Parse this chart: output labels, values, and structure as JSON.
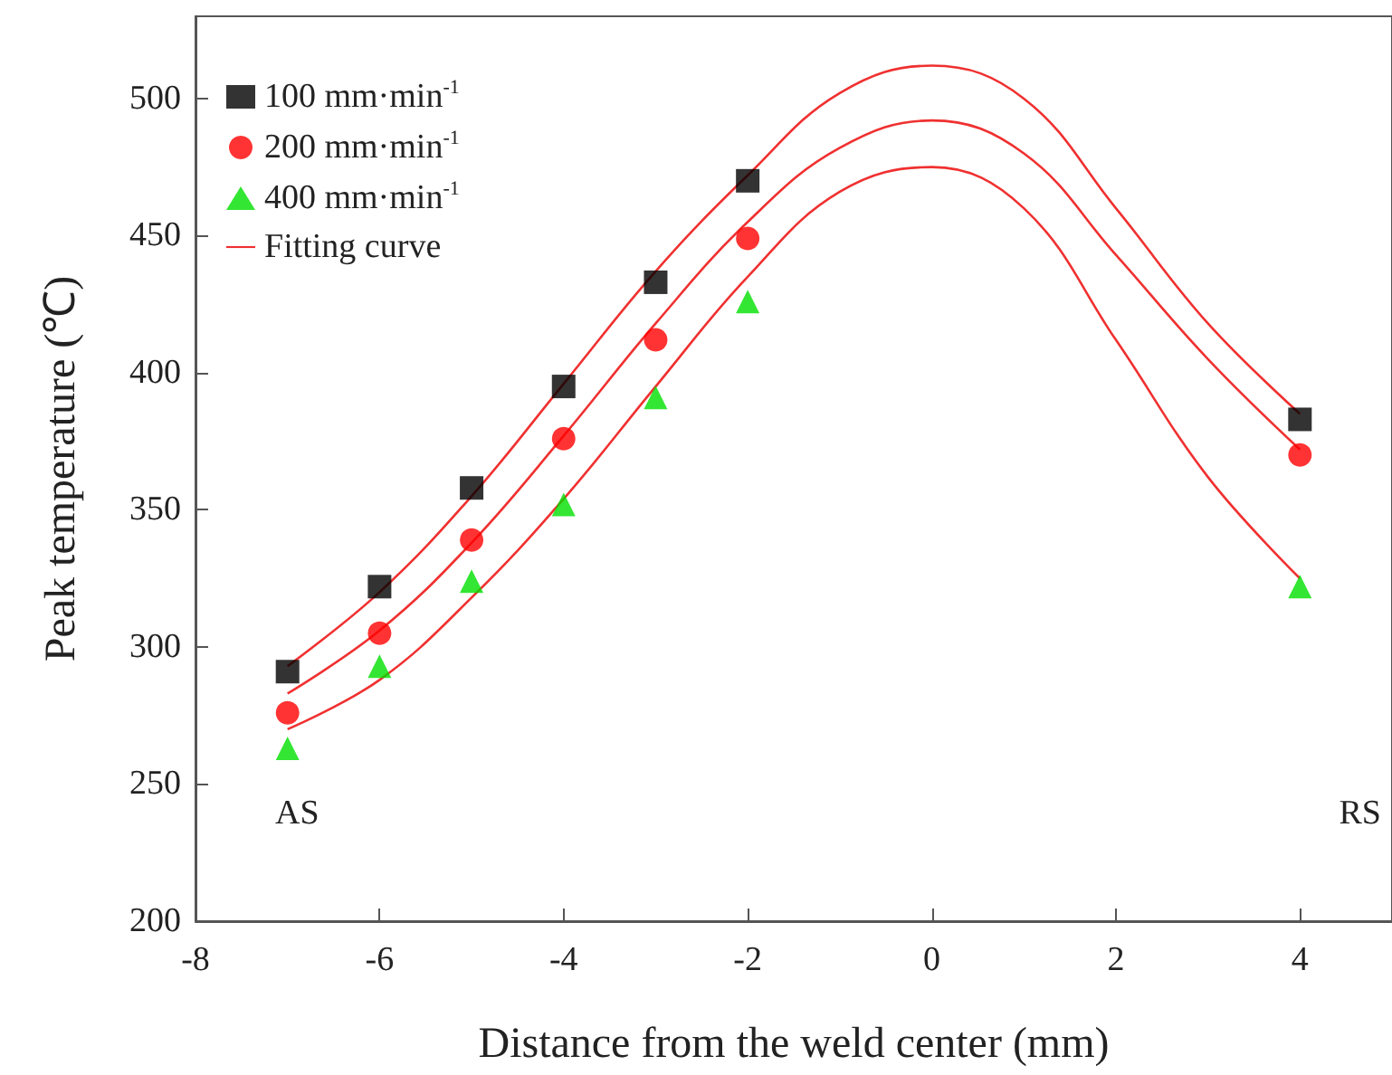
{
  "chart_data": {
    "type": "scatter",
    "xlabel": "Distance from the weld center (mm)",
    "ylabel": "Peak temperature (℃)",
    "xlim": [
      -8,
      5
    ],
    "xticks": [
      -8,
      -6,
      -4,
      -2,
      0,
      2,
      4
    ],
    "ylim": [
      200,
      530
    ],
    "yticks": [
      200,
      250,
      300,
      350,
      400,
      450,
      500
    ],
    "grid": false,
    "legend": "top left",
    "annotations": [
      "AS",
      "RS"
    ],
    "series": [
      {
        "name": "100 mm·min$^{-1}$",
        "color": "#000000",
        "marker": "square",
        "x": [
          -7,
          -6,
          -5,
          -4,
          -3,
          -2,
          4
        ],
        "values": [
          291,
          322,
          358,
          395,
          433,
          470,
          383
        ]
      },
      {
        "name": "200 mm·min$^{-1}$",
        "color": "#ff0000",
        "marker": "circle",
        "x": [
          -7,
          -6,
          -5,
          -4,
          -3,
          -2,
          4
        ],
        "values": [
          276,
          305,
          339,
          376,
          412,
          449,
          370
        ]
      },
      {
        "name": "400 mm·min$^{-1}$",
        "color": "#00e000",
        "marker": "triangle",
        "x": [
          -7,
          -6,
          -5,
          -4,
          -3,
          -2,
          4
        ],
        "values": [
          263,
          293,
          324,
          352,
          391,
          426,
          322
        ]
      },
      {
        "name": "Fitting curve",
        "type": "line",
        "color": "#f03030",
        "marker": "none",
        "line_style": "solid",
        "x": [
          -7,
          -6,
          -5,
          -4,
          -3,
          -2,
          -1,
          0,
          1,
          2,
          3,
          4
        ],
        "values": [
          293,
          320,
          355,
          396,
          437,
          472,
          502,
          512,
          500,
          460,
          418,
          385
        ]
      },
      {
        "type": "line",
        "color": "#f03030",
        "marker": "none",
        "line_style": "solid",
        "x": [
          -7,
          -6,
          -5,
          -4,
          -3,
          -2,
          -1,
          0,
          1,
          2,
          3,
          4
        ],
        "values": [
          283,
          306,
          338,
          377,
          418,
          455,
          482,
          492,
          480,
          443,
          405,
          372
        ]
      },
      {
        "type": "line",
        "color": "#f03030",
        "marker": "none",
        "line_style": "solid",
        "x": [
          -7,
          -6,
          -5,
          -4,
          -3,
          -2,
          -1,
          0,
          1,
          2,
          3,
          4
        ],
        "values": [
          270,
          288,
          318,
          354,
          395,
          435,
          466,
          475,
          460,
          412,
          362,
          325
        ]
      }
    ]
  }
}
